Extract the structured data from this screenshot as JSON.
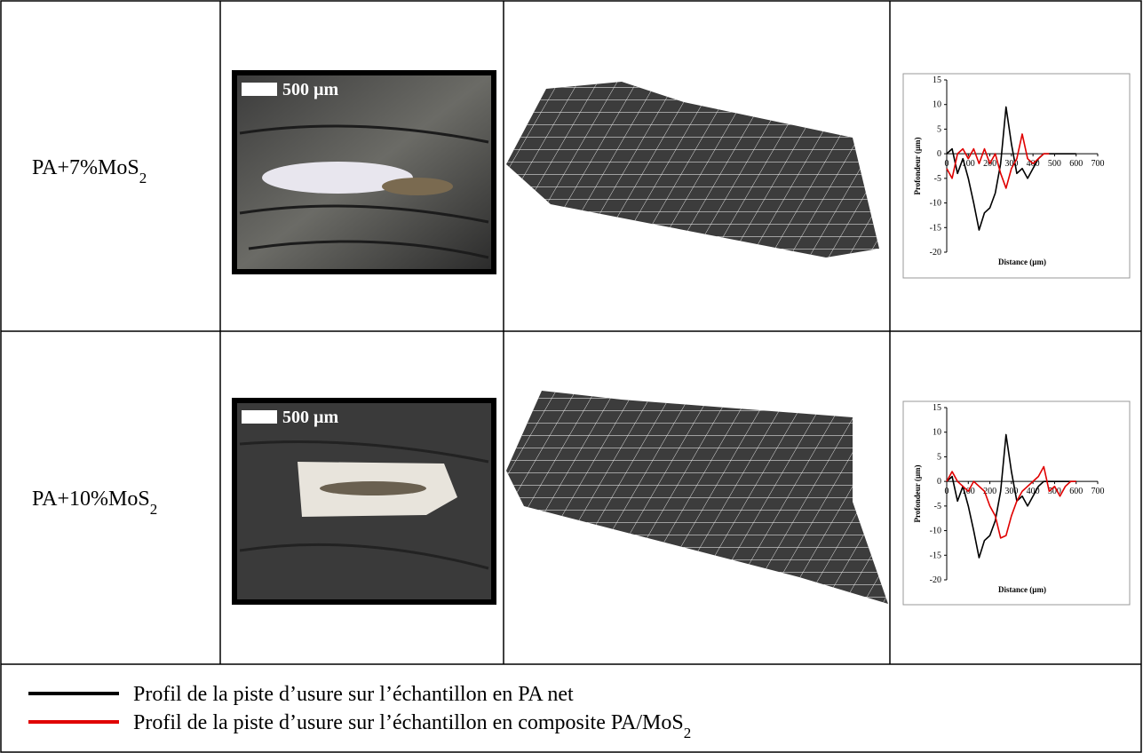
{
  "table": {
    "rows": [
      {
        "label": {
          "text": "PA+7%MoS",
          "subscript": "2"
        },
        "scale_bar": "500 µm",
        "profile": {
          "type": "line",
          "ylabel": "Profondeur (µm)",
          "xlabel": "Distance (µm)",
          "xlim": [
            0,
            700
          ],
          "ylim": [
            -20,
            15
          ],
          "xticks": [
            0,
            100,
            200,
            300,
            400,
            500,
            600,
            700
          ],
          "yticks": [
            15,
            10,
            5,
            0,
            -5,
            -10,
            -15,
            -20
          ],
          "x": [
            0,
            25,
            50,
            75,
            100,
            125,
            150,
            175,
            200,
            225,
            250,
            275,
            300,
            325,
            350,
            375,
            400,
            425,
            450,
            475,
            500,
            525,
            550,
            575,
            600
          ],
          "series": [
            {
              "color": "#000000",
              "values": [
                0,
                1,
                -4,
                -1,
                -5,
                -10,
                -15.5,
                -12,
                -11,
                -8,
                -2,
                9.5,
                2,
                -4,
                -3,
                -5,
                -3,
                -1,
                0,
                0,
                0,
                0,
                0,
                0,
                0
              ]
            },
            {
              "color": "#e00000",
              "values": [
                -3,
                -5,
                0,
                1,
                -1,
                1,
                -2,
                1,
                -2,
                0,
                -4,
                -7,
                -3,
                -1,
                4,
                -1,
                -2,
                -1,
                0,
                0,
                null,
                null,
                null,
                null,
                null
              ]
            }
          ]
        }
      },
      {
        "label": {
          "text": "PA+10%MoS",
          "subscript": "2"
        },
        "scale_bar": "500 µm",
        "profile": {
          "type": "line",
          "ylabel": "Profondeur (µm)",
          "xlabel": "Distance (µm)",
          "xlim": [
            0,
            700
          ],
          "ylim": [
            -20,
            15
          ],
          "xticks": [
            0,
            100,
            200,
            300,
            400,
            500,
            600,
            700
          ],
          "yticks": [
            15,
            10,
            5,
            0,
            -5,
            -10,
            -15,
            -20
          ],
          "x": [
            0,
            25,
            50,
            75,
            100,
            125,
            150,
            175,
            200,
            225,
            250,
            275,
            300,
            325,
            350,
            375,
            400,
            425,
            450,
            475,
            500,
            525,
            550,
            575,
            600
          ],
          "series": [
            {
              "color": "#000000",
              "values": [
                0,
                1,
                -4,
                -1,
                -5,
                -10,
                -15.5,
                -12,
                -11,
                -8,
                -2,
                9.5,
                2,
                -4,
                -3,
                -5,
                -3,
                -1,
                0,
                0,
                0,
                0,
                0,
                0,
                0
              ]
            },
            {
              "color": "#e00000",
              "values": [
                0,
                2,
                0,
                -1,
                -2,
                0,
                -1,
                -2,
                -5,
                -7,
                -11.5,
                -11,
                -7,
                -4,
                -2,
                -1,
                0,
                1,
                3,
                -2,
                -1,
                -3,
                -1,
                0,
                0
              ]
            }
          ]
        }
      }
    ]
  },
  "legend": [
    {
      "text": "Profil de la piste d’usure sur l’échantillon en PA net",
      "color": "#000000"
    },
    {
      "text": "Profil de la piste d’usure sur l’échantillon en composite PA/MoS",
      "subscript": "2",
      "color": "#e00000"
    }
  ]
}
